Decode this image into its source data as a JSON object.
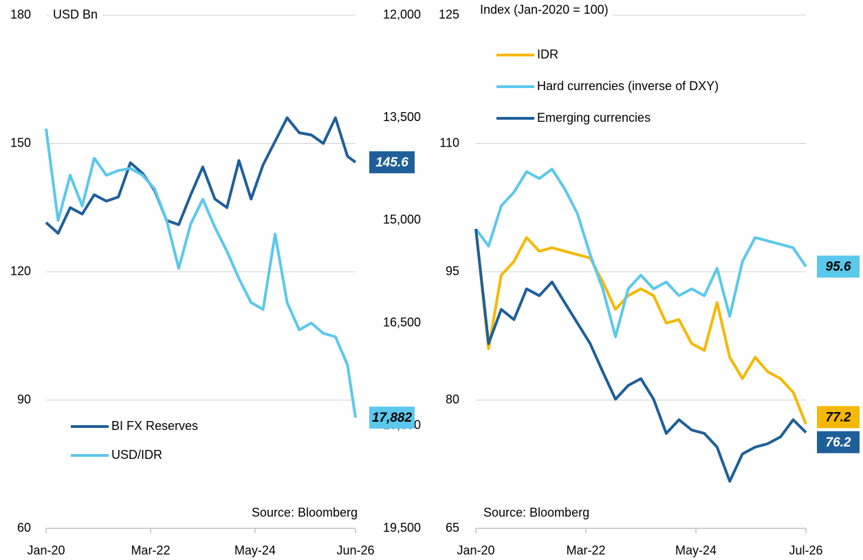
{
  "chart_data": [
    {
      "type": "line",
      "y_axis_label": "USD Bn",
      "source": "Source: Bloomberg",
      "x": [
        "Jan-20",
        "Apr-20",
        "Jul-20",
        "Oct-20",
        "Jan-21",
        "Apr-21",
        "Jul-21",
        "Oct-21",
        "Jan-22",
        "Apr-22",
        "Jul-22",
        "Oct-22",
        "Jan-23",
        "Apr-23",
        "Jul-23",
        "Oct-23",
        "Jan-24",
        "Apr-24",
        "Jul-24",
        "Oct-24",
        "Jan-25",
        "Apr-25",
        "Jul-25",
        "Oct-25",
        "Jan-26",
        "Apr-26",
        "Jun-26"
      ],
      "xticks": [
        "Jan-20",
        "Mar-22",
        "May-24",
        "Jun-26"
      ],
      "ylim": [
        60,
        180
      ],
      "yticks": [
        60,
        90,
        120,
        150,
        180
      ],
      "y2lim": [
        12000,
        19500
      ],
      "y2_inverted": true,
      "y2ticks": [
        {
          "value": 12000,
          "label": "12,000"
        },
        {
          "value": 13500,
          "label": "13,500"
        },
        {
          "value": 15000,
          "label": "15,000"
        },
        {
          "value": 16500,
          "label": "16,500"
        },
        {
          "value": 18000,
          "label": "18,000"
        },
        {
          "value": 19500,
          "label": "19,500"
        }
      ],
      "grid": true,
      "legend": "lower left",
      "series": [
        {
          "name": "BI FX Reserves",
          "color": "#1f5f99",
          "end_label": "145.6",
          "values": [
            131.5,
            129,
            135,
            133.5,
            138,
            136.5,
            137.5,
            145.5,
            143,
            139,
            132,
            131,
            138,
            144.5,
            137,
            135,
            146,
            137,
            145,
            150.5,
            156,
            152.5,
            152,
            150,
            156,
            147,
            145.6
          ]
        },
        {
          "name": "USD/IDR",
          "color": "#5bc8ec",
          "axis": "y2",
          "end_label": "17,882",
          "values": [
            13660,
            15000,
            14340,
            14790,
            14090,
            14340,
            14270,
            14240,
            14340,
            14540,
            15000,
            15700,
            15050,
            14690,
            15100,
            15450,
            15850,
            16200,
            16300,
            15200,
            16200,
            16600,
            16500,
            16650,
            16700,
            17110,
            17882
          ]
        }
      ]
    },
    {
      "type": "line",
      "y_axis_label": "Index (Jan-2020 = 100)",
      "source": "Source: Bloomberg",
      "x": [
        "Jan-20",
        "Apr-20",
        "Jul-20",
        "Oct-20",
        "Jan-21",
        "Apr-21",
        "Jul-21",
        "Oct-21",
        "Jan-22",
        "Apr-22",
        "Jul-22",
        "Oct-22",
        "Jan-23",
        "Apr-23",
        "Jul-23",
        "Oct-23",
        "Jan-24",
        "Apr-24",
        "Jul-24",
        "Oct-24",
        "Jan-25",
        "Apr-25",
        "Jul-25",
        "Oct-25",
        "Jan-26",
        "Apr-26",
        "Jul-26"
      ],
      "xticks": [
        "Jan-20",
        "Mar-22",
        "May-24",
        "Jul-26"
      ],
      "ylim": [
        65,
        125
      ],
      "yticks": [
        65,
        80,
        95,
        110,
        125
      ],
      "grid": true,
      "legend": "upper left",
      "series": [
        {
          "name": "IDR",
          "color": "#f5b800",
          "end_label": "77.2",
          "values": [
            100,
            86,
            94.6,
            96.2,
            99,
            97.4,
            97.8,
            97.4,
            97,
            96.6,
            93.8,
            90.6,
            92.2,
            93,
            92.2,
            89,
            89.4,
            86.6,
            85.8,
            91.4,
            85,
            82.5,
            85,
            83.3,
            82.5,
            80.9,
            77.2
          ]
        },
        {
          "name": "Hard currencies (inverse of DXY)",
          "color": "#5bc8ec",
          "end_label": "95.6",
          "values": [
            100,
            98,
            102.7,
            104.3,
            106.7,
            105.9,
            107,
            104.7,
            101.8,
            97,
            93,
            87.4,
            93,
            94.6,
            93,
            93.8,
            92.2,
            93,
            92.2,
            95.4,
            89.8,
            96.2,
            99,
            98.6,
            98.2,
            97.8,
            95.6
          ]
        },
        {
          "name": "Emerging currencies",
          "color": "#1f5f99",
          "end_label": "76.2",
          "values": [
            100,
            86.6,
            90.6,
            89.4,
            93,
            92.2,
            93.8,
            91.4,
            89,
            86.6,
            83.3,
            80.1,
            81.7,
            82.5,
            80.1,
            76.1,
            77.7,
            76.5,
            76.1,
            74.5,
            70.5,
            73.7,
            74.5,
            74.9,
            75.7,
            77.7,
            76.2
          ]
        }
      ]
    }
  ]
}
